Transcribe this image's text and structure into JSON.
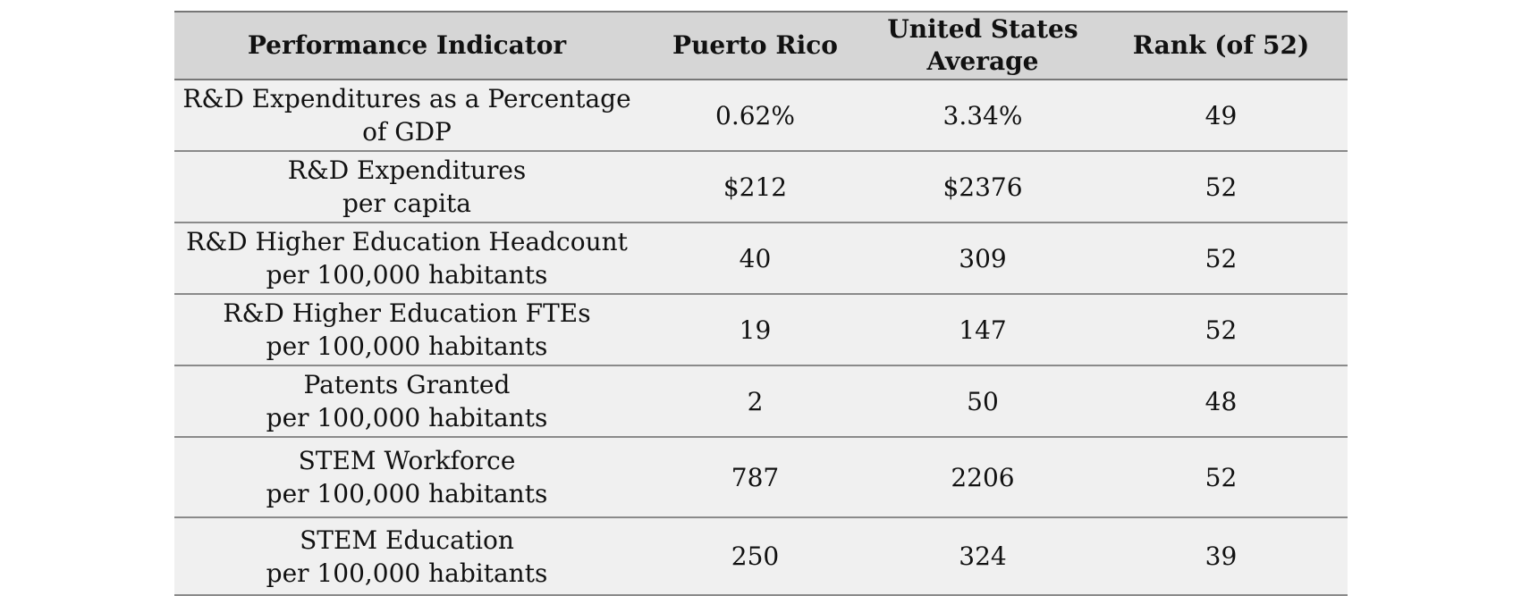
{
  "table": {
    "headers": {
      "indicator": "Performance Indicator",
      "puerto_rico": "Puerto Rico",
      "us_average_line1": "United States",
      "us_average_line2": "Average",
      "rank": "Rank (of 52)"
    },
    "rows": [
      {
        "indicator_line1": "R&D Expenditures as a Percentage",
        "indicator_line2": "of GDP",
        "puerto_rico": "0.62%",
        "us_average": "3.34%",
        "rank": "49"
      },
      {
        "indicator_line1": "R&D Expenditures",
        "indicator_line2": "per capita",
        "puerto_rico": "$212",
        "us_average": "$2376",
        "rank": "52"
      },
      {
        "indicator_line1": "R&D Higher Education Headcount",
        "indicator_line2": "per 100,000 habitants",
        "puerto_rico": "40",
        "us_average": "309",
        "rank": "52"
      },
      {
        "indicator_line1": "R&D Higher Education FTEs",
        "indicator_line2": "per 100,000 habitants",
        "puerto_rico": "19",
        "us_average": "147",
        "rank": "52"
      },
      {
        "indicator_line1": "Patents Granted",
        "indicator_line2": "per 100,000 habitants",
        "puerto_rico": "2",
        "us_average": "50",
        "rank": "48"
      },
      {
        "indicator_line1": "STEM Workforce",
        "indicator_line2": "per 100,000 habitants",
        "puerto_rico": "787",
        "us_average": "2206",
        "rank": "52"
      },
      {
        "indicator_line1": "STEM Education",
        "indicator_line2": "per 100,000 habitants",
        "puerto_rico": "250",
        "us_average": "324",
        "rank": "39"
      }
    ]
  }
}
